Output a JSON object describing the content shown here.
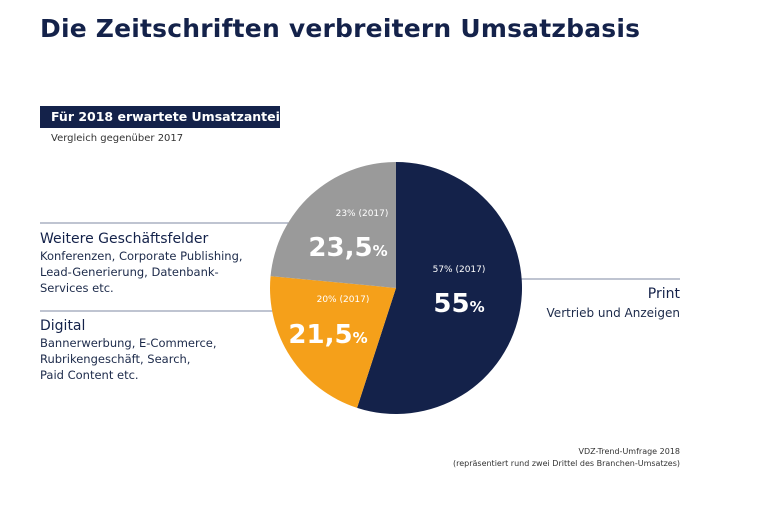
{
  "title": "Die Zeitschriften verbreitern Umsatzbasis",
  "banner": "Für 2018 erwartete Umsatzanteile",
  "subtitle": "Vergleich gegenüber 2017",
  "colors": {
    "print": "#14224a",
    "weitere": "#9a9a9a",
    "digital": "#f5a01a",
    "lines": "#7f8aa3"
  },
  "labels": {
    "weitere": {
      "name": "Weitere Geschäftsfelder",
      "desc": [
        "Konferenzen, Corporate Publishing,",
        "Lead-Generierung, Datenbank-",
        "Services etc."
      ]
    },
    "digital": {
      "name": "Digital",
      "desc": [
        "Bannerwerbung, E-Commerce,",
        "Rubrikengeschäft, Search,",
        "Paid Content etc."
      ]
    },
    "print": {
      "name": "Print",
      "desc": "Vertrieb und Anzeigen"
    }
  },
  "source": {
    "line1": "VDZ-Trend-Umfrage 2018",
    "line2": "(repräsentiert rund zwei Drittel des Branchen-Umsatzes)"
  },
  "chart_data": {
    "type": "pie",
    "title": "Für 2018 erwartete Umsatzanteile",
    "subtitle": "Vergleich gegenüber 2017",
    "slices": [
      {
        "key": "print",
        "name": "Print",
        "value": 55,
        "value_label": "55",
        "prev_label": "57% (2017)",
        "color": "#14224a"
      },
      {
        "key": "digital",
        "name": "Digital",
        "value": 21.5,
        "value_label": "21,5",
        "prev_label": "20% (2017)",
        "color": "#f5a01a"
      },
      {
        "key": "weitere",
        "name": "Weitere Geschäftsfelder",
        "value": 23.5,
        "value_label": "23,5",
        "prev_label": "23% (2017)",
        "color": "#9a9a9a"
      }
    ],
    "unit": "%"
  }
}
